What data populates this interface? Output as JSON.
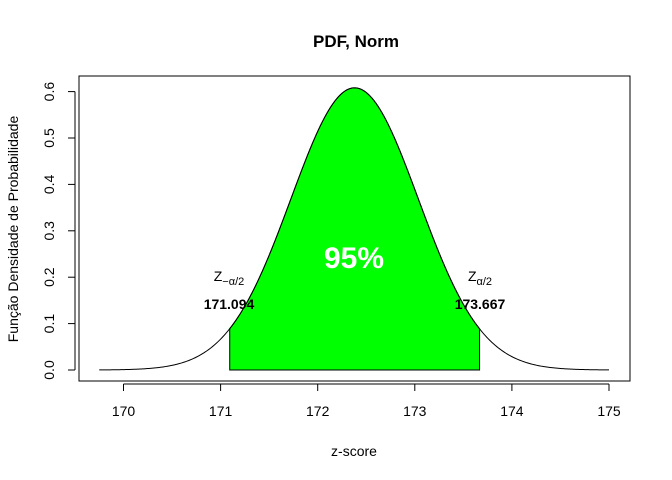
{
  "chart_data": {
    "type": "area",
    "title": "PDF, Norm",
    "xlabel": "z-score",
    "ylabel": "Função Densidade de Probabilidade",
    "xlim": [
      169.75,
      175
    ],
    "ylim": [
      0,
      0.62
    ],
    "x_ticks": [
      170,
      171,
      172,
      173,
      174,
      175
    ],
    "y_ticks": [
      0.0,
      0.1,
      0.2,
      0.3,
      0.4,
      0.5,
      0.6
    ],
    "y_tick_labels": [
      "0.0",
      "0.1",
      "0.2",
      "0.3",
      "0.4",
      "0.5",
      "0.6"
    ],
    "distribution": {
      "mean": 172.38,
      "sd": 0.656
    },
    "curve_range": [
      169.75,
      175
    ],
    "shaded_region": {
      "from": 171.094,
      "to": 173.667,
      "color": "#00ff00",
      "label": "95%"
    },
    "critical_values": [
      {
        "symbol": "Z",
        "subscript": "−α/2",
        "value": "171.094",
        "x": 171.094
      },
      {
        "symbol": "Z",
        "subscript": "α/2",
        "value": "173.667",
        "x": 173.667
      }
    ],
    "grid": false,
    "legend": "none"
  }
}
